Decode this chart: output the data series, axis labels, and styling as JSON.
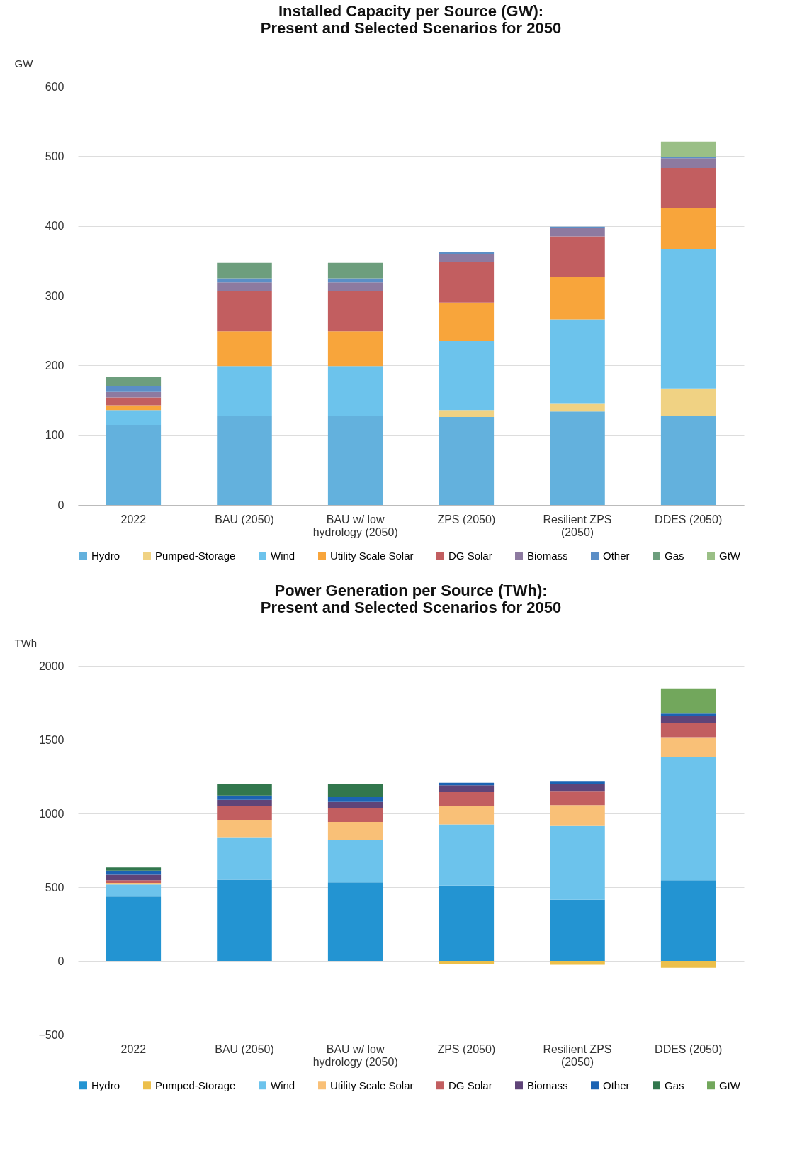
{
  "chart_data": [
    {
      "type": "bar",
      "stacked": true,
      "title": "Installed Capacity per Source (GW):\nPresent and Selected Scenarios for 2050",
      "ylabel": "GW",
      "categories": [
        "2022",
        "BAU (2050)",
        "BAU w/ low hydrology (2050)",
        "ZPS (2050)",
        "Resilient ZPS (2050)",
        "DDES (2050)"
      ],
      "ylim": [
        0,
        600
      ],
      "yticks": [
        0,
        100,
        200,
        300,
        400,
        500,
        600
      ],
      "grid": "y",
      "legend": "bottom",
      "series": [
        {
          "name": "Hydro",
          "color": "#63b1dd",
          "values": [
            114,
            127,
            127,
            126,
            134,
            127
          ]
        },
        {
          "name": "Pumped-Storage",
          "color": "#f0d283",
          "values": [
            0,
            1,
            1,
            10,
            12,
            40
          ]
        },
        {
          "name": "Wind",
          "color": "#6cc3ec",
          "values": [
            22,
            71,
            71,
            99,
            120,
            200
          ]
        },
        {
          "name": "Utility Scale Solar",
          "color": "#f8a53b",
          "values": [
            7,
            50,
            50,
            55,
            61,
            58
          ]
        },
        {
          "name": "DG Solar",
          "color": "#c25e60",
          "values": [
            11,
            58,
            58,
            58,
            58,
            58
          ]
        },
        {
          "name": "Biomass",
          "color": "#8d7aa0",
          "values": [
            8,
            12,
            12,
            12,
            12,
            14
          ]
        },
        {
          "name": "Other",
          "color": "#5b8ec6",
          "values": [
            8,
            6,
            6,
            2,
            2,
            2
          ]
        },
        {
          "name": "Gas",
          "color": "#6d9e7d",
          "values": [
            14,
            22,
            22,
            0,
            0,
            0
          ]
        },
        {
          "name": "GtW",
          "color": "#9abf86",
          "values": [
            0,
            0,
            0,
            0,
            0,
            22
          ]
        }
      ]
    },
    {
      "type": "bar",
      "stacked": true,
      "title": "Power Generation per Source (TWh):\nPresent and Selected Scenarios for 2050",
      "ylabel": "TWh",
      "categories": [
        "2022",
        "BAU (2050)",
        "BAU w/ low hydrology (2050)",
        "ZPS (2050)",
        "Resilient ZPS (2050)",
        "DDES (2050)"
      ],
      "ylim": [
        -500,
        2000
      ],
      "yticks": [
        -500,
        0,
        500,
        1000,
        1500,
        2000
      ],
      "grid": "y",
      "legend": "bottom",
      "series": [
        {
          "name": "Hydro",
          "color": "#2394d2",
          "values": [
            436,
            550,
            532,
            511,
            415,
            547
          ]
        },
        {
          "name": "Pumped-Storage",
          "color": "#ecbf4a",
          "values": [
            0,
            0,
            0,
            -20,
            -27,
            -47
          ]
        },
        {
          "name": "Wind",
          "color": "#6cc3ec",
          "values": [
            82,
            289,
            289,
            414,
            500,
            833
          ]
        },
        {
          "name": "Utility Scale Solar",
          "color": "#f9c077",
          "values": [
            11,
            117,
            121,
            127,
            142,
            137
          ]
        },
        {
          "name": "DG Solar",
          "color": "#c25e60",
          "values": [
            18,
            93,
            92,
            92,
            91,
            94
          ]
        },
        {
          "name": "Biomass",
          "color": "#5f4478",
          "values": [
            37,
            44,
            44,
            47,
            50,
            50
          ]
        },
        {
          "name": "Other",
          "color": "#1b63b3",
          "values": [
            28,
            28,
            32,
            17,
            17,
            16
          ]
        },
        {
          "name": "Gas",
          "color": "#32774d",
          "values": [
            21,
            78,
            87,
            0,
            0,
            0
          ]
        },
        {
          "name": "GtW",
          "color": "#72a75c",
          "values": [
            0,
            0,
            0,
            0,
            0,
            170
          ]
        }
      ]
    }
  ]
}
